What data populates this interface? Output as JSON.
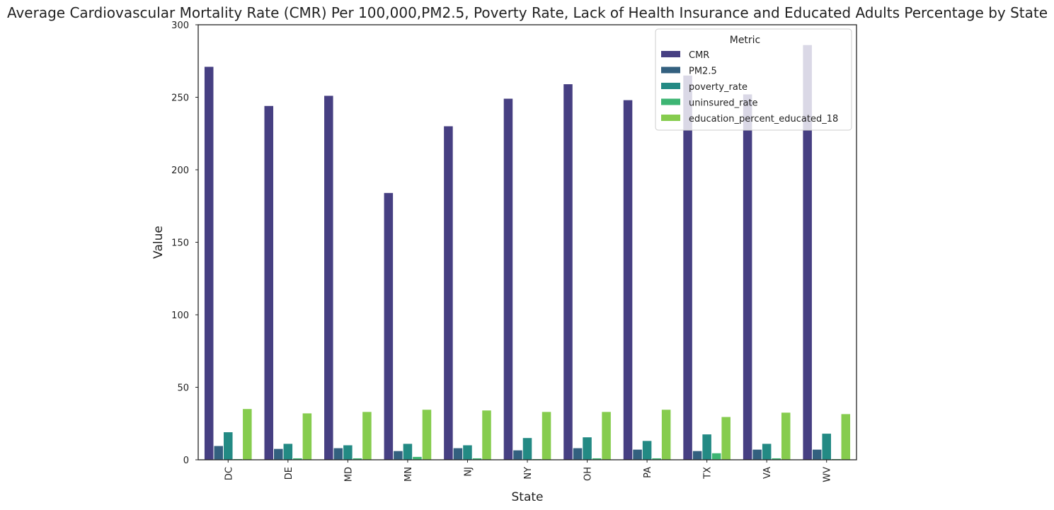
{
  "chart_data": {
    "type": "bar",
    "title": "Average Cardiovascular Mortality Rate (CMR) Per 100,000,PM2.5, Poverty Rate, Lack of Health Insurance and Educated Adults Percentage by State",
    "xlabel": "State",
    "ylabel": "Value",
    "ylim": [
      0,
      300
    ],
    "yticks": [
      0,
      50,
      100,
      150,
      200,
      250,
      300
    ],
    "grid": false,
    "legend": {
      "title": "Metric",
      "position": "top-right"
    },
    "categories": [
      "DC",
      "DE",
      "MD",
      "MN",
      "NJ",
      "NY",
      "OH",
      "PA",
      "TX",
      "VA",
      "WV"
    ],
    "series": [
      {
        "name": "CMR",
        "color": "#463f82",
        "values": [
          271,
          244,
          251,
          184,
          230,
          249,
          259,
          248,
          265,
          252,
          286
        ]
      },
      {
        "name": "PM2.5",
        "color": "#33607f",
        "values": [
          9.5,
          7.5,
          8,
          6,
          8,
          6.5,
          8,
          7,
          6,
          7,
          7
        ]
      },
      {
        "name": "poverty_rate",
        "color": "#238a84",
        "values": [
          19,
          11,
          10,
          11,
          10,
          15,
          15.5,
          13,
          17.5,
          11,
          18
        ]
      },
      {
        "name": "uninsured_rate",
        "color": "#3db573",
        "values": [
          0.5,
          1,
          1,
          2,
          1,
          0.5,
          1,
          1,
          4.5,
          1,
          0.5
        ]
      },
      {
        "name": "education_percent_educated_18",
        "color": "#86cc4e",
        "values": [
          35,
          32,
          33,
          34.5,
          34,
          33,
          33,
          34.5,
          29.5,
          32.5,
          31.5
        ]
      }
    ]
  }
}
